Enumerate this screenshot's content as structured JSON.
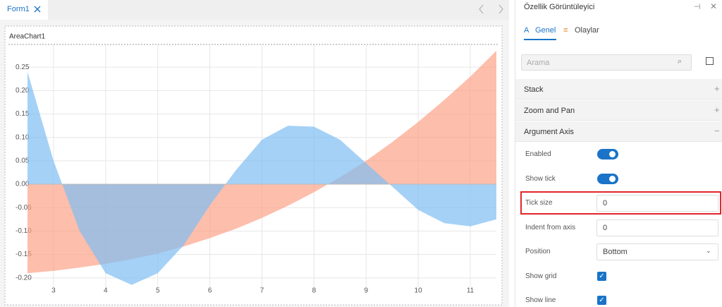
{
  "tab": {
    "title": "Form1"
  },
  "chart_data": {
    "type": "area",
    "title": "AreaChart1",
    "x": [
      2.5,
      3,
      3.5,
      4,
      4.5,
      5,
      5.5,
      6,
      6.5,
      7,
      7.5,
      8,
      8.5,
      9,
      9.5,
      10,
      10.5,
      11,
      11.5
    ],
    "series": [
      {
        "color": "#fca388",
        "values": [
          -0.19,
          -0.185,
          -0.178,
          -0.17,
          -0.16,
          -0.148,
          -0.133,
          -0.115,
          -0.095,
          -0.072,
          -0.046,
          -0.017,
          0.015,
          0.05,
          0.09,
          0.133,
          0.18,
          0.23,
          0.285
        ]
      },
      {
        "color": "#7fbdf4",
        "values": [
          0.24,
          0.05,
          -0.1,
          -0.19,
          -0.215,
          -0.19,
          -0.13,
          -0.045,
          0.03,
          0.095,
          0.125,
          0.123,
          0.095,
          0.045,
          -0.005,
          -0.055,
          -0.083,
          -0.09,
          -0.075
        ]
      }
    ],
    "xlim": [
      2.5,
      11.5
    ],
    "xticks": [
      3,
      4,
      5,
      6,
      7,
      8,
      9,
      10,
      11
    ],
    "ylim": [
      -0.22,
      0.297
    ],
    "yticks": [
      {
        "value": -0.2,
        "label": "-0.20"
      },
      -0.15,
      {
        "value": -0.1,
        "label": "-0.10"
      },
      -0.05,
      {
        "value": 0,
        "label": "0.00"
      },
      0.05,
      {
        "value": 0.1,
        "label": "0.10"
      },
      0.15,
      {
        "value": 0.2,
        "label": "0.20"
      },
      0.25
    ],
    "grid": true
  },
  "panel": {
    "title": "Özellik Görüntüleyici",
    "tabs": [
      {
        "label": "Genel",
        "active": true
      },
      {
        "label": "Olaylar",
        "active": false
      }
    ],
    "search_placeholder": "Arama",
    "sections": [
      {
        "label": "Stack",
        "expanded": false
      },
      {
        "label": "Zoom and Pan",
        "expanded": false
      },
      {
        "label": "Argument Axis",
        "expanded": true
      }
    ],
    "properties": [
      {
        "label": "Enabled",
        "kind": "toggle",
        "value": true
      },
      {
        "label": "Show tick",
        "kind": "toggle",
        "value": true
      },
      {
        "label": "Tick size",
        "kind": "text",
        "value": "0",
        "highlighted": true
      },
      {
        "label": "Indent from axis",
        "kind": "text",
        "value": "0"
      },
      {
        "label": "Position",
        "kind": "select",
        "value": "Bottom"
      },
      {
        "label": "Show grid",
        "kind": "checkbox",
        "value": true
      },
      {
        "label": "Show line",
        "kind": "checkbox",
        "value": true
      }
    ]
  }
}
